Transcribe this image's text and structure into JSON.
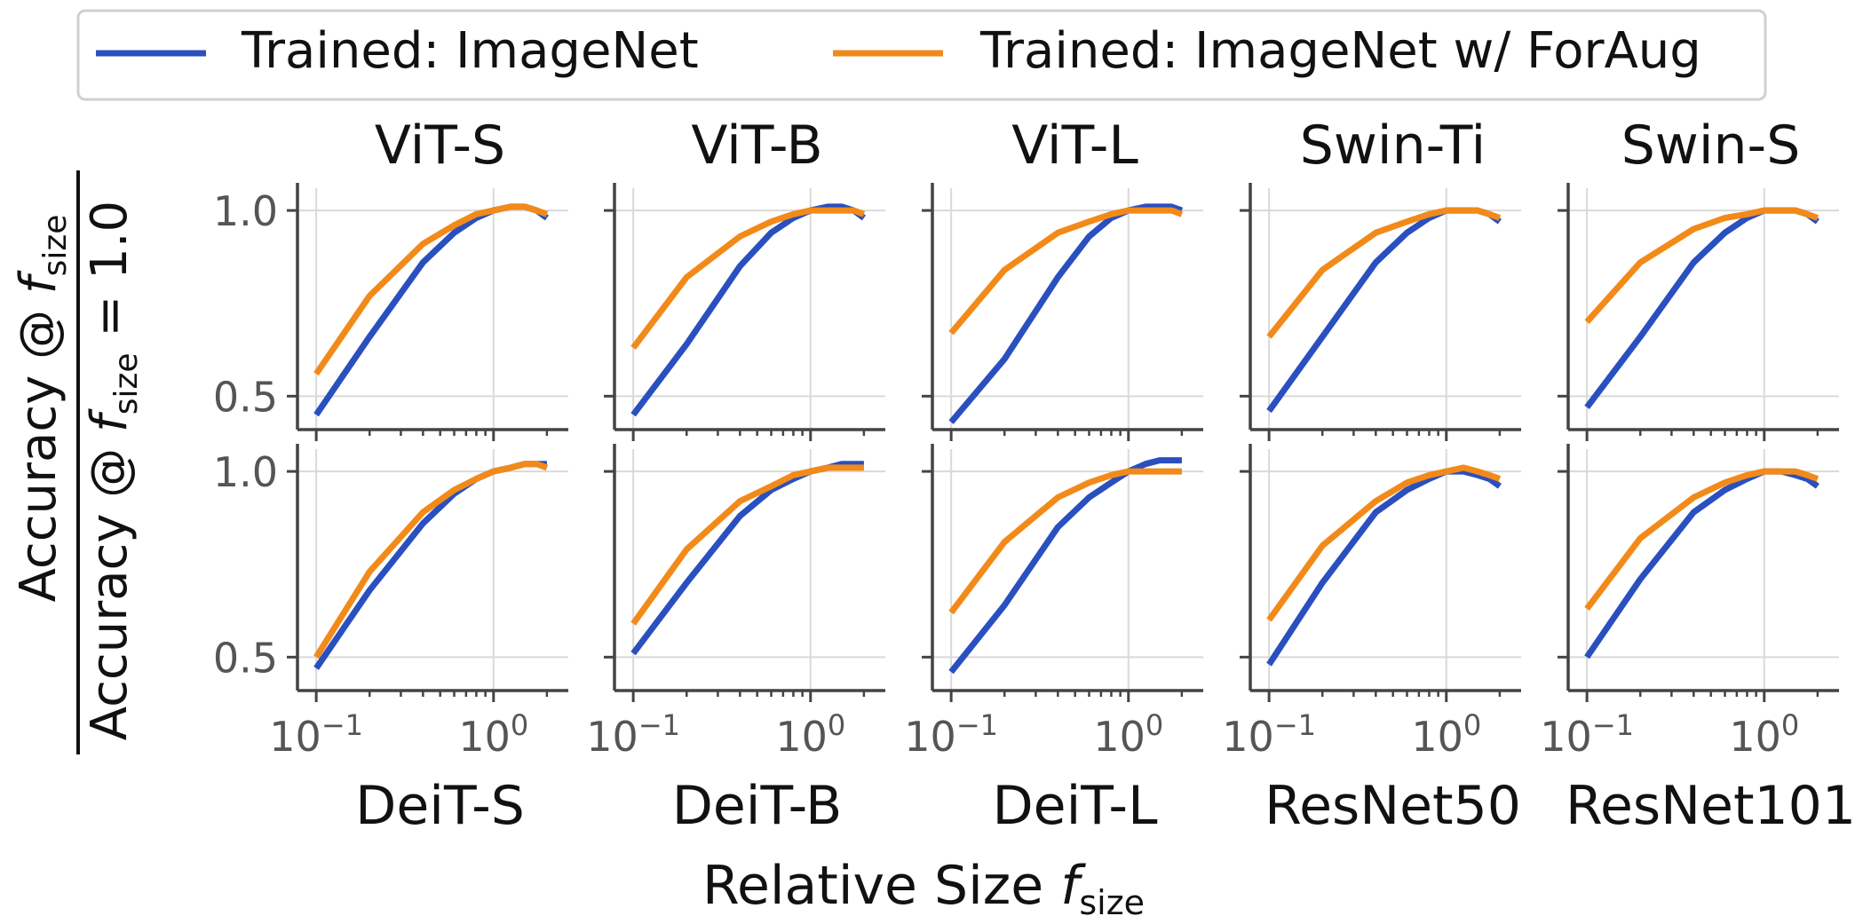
{
  "figure": {
    "legend": {
      "placement": "top-center",
      "entries": [
        "Trained: ImageNet",
        "Trained: ImageNet w/ ForAug"
      ]
    },
    "x_label": "Relative Size",
    "x_label_symbol": "f",
    "x_label_sub": "size",
    "y_label": {
      "numerator_text": "Accuracy @ ",
      "numerator_symbol": "f",
      "numerator_sub": "size",
      "denominator_text": "Accuracy @ ",
      "denominator_symbol": "f",
      "denominator_sub": "size",
      "denominator_suffix": " = 1.0"
    },
    "x_tick_base": "10",
    "x_tick_exponents": [
      "−1",
      "0"
    ],
    "y_tick_labels": [
      "0.5",
      "1.0"
    ]
  },
  "colors": {
    "imagenet": "#2a4fbf",
    "foraug": "#f28a1a",
    "grid": "#d9d9d9",
    "axis": "#444444",
    "tick_text": "#555555"
  },
  "chart_data": [
    {
      "type": "line",
      "title": "ViT-S",
      "x": [
        0.1,
        0.2,
        0.4,
        0.6,
        0.8,
        1.0,
        1.25,
        1.5,
        1.75,
        2.0
      ],
      "xscale": "log",
      "xlim": [
        0.09,
        2.3
      ],
      "ylim": [
        0.41,
        1.06
      ],
      "grid": true,
      "series": [
        {
          "name": "Trained: ImageNet",
          "values": [
            0.45,
            0.66,
            0.86,
            0.94,
            0.98,
            1.0,
            1.01,
            1.01,
            1.0,
            0.98
          ]
        },
        {
          "name": "Trained: ImageNet w/ ForAug",
          "values": [
            0.56,
            0.77,
            0.91,
            0.96,
            0.99,
            1.0,
            1.01,
            1.01,
            1.0,
            0.99
          ]
        }
      ]
    },
    {
      "type": "line",
      "title": "ViT-B",
      "x": [
        0.1,
        0.2,
        0.4,
        0.6,
        0.8,
        1.0,
        1.25,
        1.5,
        1.75,
        2.0
      ],
      "xscale": "log",
      "xlim": [
        0.09,
        2.3
      ],
      "ylim": [
        0.41,
        1.06
      ],
      "grid": true,
      "series": [
        {
          "name": "Trained: ImageNet",
          "values": [
            0.45,
            0.64,
            0.85,
            0.94,
            0.98,
            1.0,
            1.01,
            1.01,
            1.0,
            0.98
          ]
        },
        {
          "name": "Trained: ImageNet w/ ForAug",
          "values": [
            0.63,
            0.82,
            0.93,
            0.97,
            0.99,
            1.0,
            1.0,
            1.0,
            1.0,
            0.99
          ]
        }
      ]
    },
    {
      "type": "line",
      "title": "ViT-L",
      "x": [
        0.1,
        0.2,
        0.4,
        0.6,
        0.8,
        1.0,
        1.25,
        1.5,
        1.75,
        2.0
      ],
      "xscale": "log",
      "xlim": [
        0.09,
        2.3
      ],
      "ylim": [
        0.41,
        1.06
      ],
      "grid": true,
      "series": [
        {
          "name": "Trained: ImageNet",
          "values": [
            0.43,
            0.6,
            0.82,
            0.93,
            0.98,
            1.0,
            1.01,
            1.01,
            1.01,
            1.0
          ]
        },
        {
          "name": "Trained: ImageNet w/ ForAug",
          "values": [
            0.67,
            0.84,
            0.94,
            0.97,
            0.99,
            1.0,
            1.0,
            1.0,
            1.0,
            0.99
          ]
        }
      ]
    },
    {
      "type": "line",
      "title": "Swin-Ti",
      "x": [
        0.1,
        0.2,
        0.4,
        0.6,
        0.8,
        1.0,
        1.25,
        1.5,
        1.75,
        2.0
      ],
      "xscale": "log",
      "xlim": [
        0.09,
        2.3
      ],
      "ylim": [
        0.41,
        1.06
      ],
      "grid": true,
      "series": [
        {
          "name": "Trained: ImageNet",
          "values": [
            0.46,
            0.66,
            0.86,
            0.94,
            0.98,
            1.0,
            1.0,
            1.0,
            0.99,
            0.97
          ]
        },
        {
          "name": "Trained: ImageNet w/ ForAug",
          "values": [
            0.66,
            0.84,
            0.94,
            0.97,
            0.99,
            1.0,
            1.0,
            1.0,
            0.99,
            0.98
          ]
        }
      ]
    },
    {
      "type": "line",
      "title": "Swin-S",
      "x": [
        0.1,
        0.2,
        0.4,
        0.6,
        0.8,
        1.0,
        1.25,
        1.5,
        1.75,
        2.0
      ],
      "xscale": "log",
      "xlim": [
        0.09,
        2.3
      ],
      "ylim": [
        0.41,
        1.06
      ],
      "grid": true,
      "series": [
        {
          "name": "Trained: ImageNet",
          "values": [
            0.47,
            0.66,
            0.86,
            0.94,
            0.98,
            1.0,
            1.0,
            1.0,
            0.99,
            0.97
          ]
        },
        {
          "name": "Trained: ImageNet w/ ForAug",
          "values": [
            0.7,
            0.86,
            0.95,
            0.98,
            0.99,
            1.0,
            1.0,
            1.0,
            0.99,
            0.98
          ]
        }
      ]
    },
    {
      "type": "line",
      "title": "DeiT-S",
      "x": [
        0.1,
        0.2,
        0.4,
        0.6,
        0.8,
        1.0,
        1.25,
        1.5,
        1.75,
        2.0
      ],
      "xscale": "log",
      "xlim": [
        0.09,
        2.3
      ],
      "ylim": [
        0.41,
        1.06
      ],
      "grid": true,
      "series": [
        {
          "name": "Trained: ImageNet",
          "values": [
            0.47,
            0.68,
            0.86,
            0.94,
            0.98,
            1.0,
            1.01,
            1.02,
            1.02,
            1.02
          ]
        },
        {
          "name": "Trained: ImageNet w/ ForAug",
          "values": [
            0.5,
            0.73,
            0.89,
            0.95,
            0.98,
            1.0,
            1.01,
            1.02,
            1.02,
            1.01
          ]
        }
      ]
    },
    {
      "type": "line",
      "title": "DeiT-B",
      "x": [
        0.1,
        0.2,
        0.4,
        0.6,
        0.8,
        1.0,
        1.25,
        1.5,
        1.75,
        2.0
      ],
      "xscale": "log",
      "xlim": [
        0.09,
        2.3
      ],
      "ylim": [
        0.41,
        1.06
      ],
      "grid": true,
      "series": [
        {
          "name": "Trained: ImageNet",
          "values": [
            0.51,
            0.7,
            0.88,
            0.95,
            0.98,
            1.0,
            1.01,
            1.02,
            1.02,
            1.02
          ]
        },
        {
          "name": "Trained: ImageNet w/ ForAug",
          "values": [
            0.59,
            0.79,
            0.92,
            0.96,
            0.99,
            1.0,
            1.01,
            1.01,
            1.01,
            1.01
          ]
        }
      ]
    },
    {
      "type": "line",
      "title": "DeiT-L",
      "x": [
        0.1,
        0.2,
        0.4,
        0.6,
        0.8,
        1.0,
        1.25,
        1.5,
        1.75,
        2.0
      ],
      "xscale": "log",
      "xlim": [
        0.09,
        2.3
      ],
      "ylim": [
        0.41,
        1.06
      ],
      "grid": true,
      "series": [
        {
          "name": "Trained: ImageNet",
          "values": [
            0.46,
            0.64,
            0.85,
            0.93,
            0.97,
            1.0,
            1.02,
            1.03,
            1.03,
            1.03
          ]
        },
        {
          "name": "Trained: ImageNet w/ ForAug",
          "values": [
            0.62,
            0.81,
            0.93,
            0.97,
            0.99,
            1.0,
            1.0,
            1.0,
            1.0,
            1.0
          ]
        }
      ]
    },
    {
      "type": "line",
      "title": "ResNet50",
      "x": [
        0.1,
        0.2,
        0.4,
        0.6,
        0.8,
        1.0,
        1.25,
        1.5,
        1.75,
        2.0
      ],
      "xscale": "log",
      "xlim": [
        0.09,
        2.3
      ],
      "ylim": [
        0.41,
        1.06
      ],
      "grid": true,
      "series": [
        {
          "name": "Trained: ImageNet",
          "values": [
            0.48,
            0.7,
            0.89,
            0.95,
            0.98,
            1.0,
            1.0,
            0.99,
            0.98,
            0.96
          ]
        },
        {
          "name": "Trained: ImageNet w/ ForAug",
          "values": [
            0.6,
            0.8,
            0.92,
            0.97,
            0.99,
            1.0,
            1.01,
            1.0,
            0.99,
            0.98
          ]
        }
      ]
    },
    {
      "type": "line",
      "title": "ResNet101",
      "x": [
        0.1,
        0.2,
        0.4,
        0.6,
        0.8,
        1.0,
        1.25,
        1.5,
        1.75,
        2.0
      ],
      "xscale": "log",
      "xlim": [
        0.09,
        2.3
      ],
      "ylim": [
        0.41,
        1.06
      ],
      "grid": true,
      "series": [
        {
          "name": "Trained: ImageNet",
          "values": [
            0.5,
            0.71,
            0.89,
            0.95,
            0.98,
            1.0,
            1.0,
            0.99,
            0.98,
            0.96
          ]
        },
        {
          "name": "Trained: ImageNet w/ ForAug",
          "values": [
            0.63,
            0.82,
            0.93,
            0.97,
            0.99,
            1.0,
            1.0,
            1.0,
            0.99,
            0.98
          ]
        }
      ]
    }
  ]
}
